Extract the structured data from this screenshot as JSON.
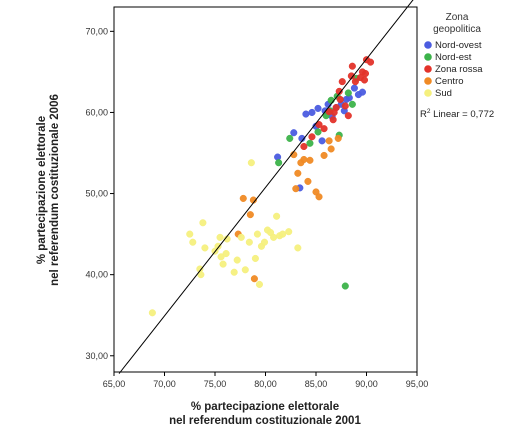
{
  "chart_data": {
    "type": "scatter",
    "xlabel": [
      "% partecipazione elettorale",
      "nel referendum costituzionale 2001"
    ],
    "ylabel": [
      "% partecipazione elettorale",
      "nel referendum costituzionale 2006"
    ],
    "xlim": [
      65,
      95
    ],
    "ylim": [
      28,
      73
    ],
    "x_ticks": [
      65,
      70,
      75,
      80,
      85,
      90,
      95
    ],
    "x_tick_labels": [
      "65,00",
      "70,00",
      "75,00",
      "80,00",
      "85,00",
      "90,00",
      "95,00"
    ],
    "y_ticks": [
      30,
      40,
      50,
      60,
      70
    ],
    "y_tick_labels": [
      "30,00",
      "40,00",
      "50,00",
      "60,00",
      "70,00"
    ],
    "grid": false,
    "legend": {
      "title": [
        "Zona",
        "geopolitica"
      ],
      "placement": "right"
    },
    "annotation": {
      "r2_label": "R² Linear = 0,772",
      "prefix": "R",
      "sup": "2",
      "suffix": " Linear = 0,772"
    },
    "fit_line": {
      "x": [
        65.5,
        95
      ],
      "y": [
        27.8,
        74.5
      ]
    },
    "series": [
      {
        "name": "Nord-ovest",
        "color": "#4B5CE0",
        "points": [
          [
            81.2,
            54.5
          ],
          [
            82.8,
            57.5
          ],
          [
            83.4,
            50.7
          ],
          [
            83.6,
            56.8
          ],
          [
            84.0,
            59.8
          ],
          [
            84.6,
            60.0
          ],
          [
            85.0,
            58.3
          ],
          [
            85.2,
            60.5
          ],
          [
            85.6,
            56.5
          ],
          [
            85.9,
            60.2
          ],
          [
            86.2,
            61.0
          ],
          [
            86.6,
            59.5
          ],
          [
            87.0,
            60.6
          ],
          [
            87.5,
            61.0
          ],
          [
            88.0,
            61.6
          ],
          [
            88.3,
            61.8
          ],
          [
            89.2,
            62.2
          ],
          [
            88.8,
            63.0
          ],
          [
            89.6,
            62.5
          ],
          [
            87.8,
            60.2
          ]
        ]
      },
      {
        "name": "Nord-est",
        "color": "#3CB34A",
        "points": [
          [
            81.3,
            53.8
          ],
          [
            82.4,
            56.8
          ],
          [
            84.4,
            56.2
          ],
          [
            85.2,
            57.6
          ],
          [
            86.0,
            59.6
          ],
          [
            86.4,
            60.2
          ],
          [
            87.1,
            62.0
          ],
          [
            87.3,
            57.2
          ],
          [
            88.2,
            62.4
          ],
          [
            89.0,
            64.2
          ],
          [
            87.9,
            38.6
          ],
          [
            86.5,
            61.5
          ],
          [
            88.6,
            61.0
          ]
        ]
      },
      {
        "name": "Zona rossa",
        "color": "#E3332A",
        "points": [
          [
            83.8,
            55.8
          ],
          [
            84.6,
            57.0
          ],
          [
            85.3,
            58.5
          ],
          [
            85.8,
            58.0
          ],
          [
            86.3,
            60.1
          ],
          [
            86.7,
            59.1
          ],
          [
            87.0,
            60.6
          ],
          [
            87.4,
            61.6
          ],
          [
            87.6,
            63.8
          ],
          [
            87.3,
            62.6
          ],
          [
            87.9,
            60.8
          ],
          [
            88.2,
            59.6
          ],
          [
            88.5,
            64.5
          ],
          [
            88.6,
            65.7
          ],
          [
            88.9,
            63.8
          ],
          [
            89.4,
            64.3
          ],
          [
            89.6,
            65.0
          ],
          [
            89.8,
            64.0
          ],
          [
            90.0,
            66.5
          ],
          [
            90.4,
            66.2
          ],
          [
            89.9,
            64.8
          ],
          [
            86.8,
            60.0
          ]
        ]
      },
      {
        "name": "Centro",
        "color": "#F08A24",
        "points": [
          [
            77.3,
            45.0
          ],
          [
            77.8,
            49.4
          ],
          [
            78.5,
            47.4
          ],
          [
            78.8,
            49.2
          ],
          [
            78.9,
            39.5
          ],
          [
            82.8,
            54.8
          ],
          [
            83.2,
            52.5
          ],
          [
            83.5,
            53.8
          ],
          [
            83.8,
            54.2
          ],
          [
            84.2,
            51.5
          ],
          [
            84.4,
            54.1
          ],
          [
            85.0,
            50.2
          ],
          [
            85.3,
            49.6
          ],
          [
            85.8,
            54.7
          ],
          [
            86.3,
            56.5
          ],
          [
            86.5,
            55.5
          ],
          [
            87.2,
            56.8
          ],
          [
            83.0,
            50.6
          ]
        ]
      },
      {
        "name": "Sud",
        "color": "#F5F07E",
        "points": [
          [
            68.8,
            35.3
          ],
          [
            72.5,
            45.0
          ],
          [
            73.5,
            40.7
          ],
          [
            73.6,
            40.0
          ],
          [
            73.8,
            46.4
          ],
          [
            74.0,
            43.3
          ],
          [
            75.0,
            42.9
          ],
          [
            75.3,
            43.5
          ],
          [
            75.5,
            44.6
          ],
          [
            75.6,
            42.2
          ],
          [
            75.8,
            41.3
          ],
          [
            76.1,
            42.6
          ],
          [
            76.2,
            44.4
          ],
          [
            76.9,
            40.3
          ],
          [
            77.2,
            41.8
          ],
          [
            77.6,
            44.6
          ],
          [
            78.0,
            40.6
          ],
          [
            78.4,
            44.0
          ],
          [
            78.6,
            53.8
          ],
          [
            79.0,
            42.0
          ],
          [
            79.2,
            45.0
          ],
          [
            79.4,
            38.8
          ],
          [
            79.6,
            43.5
          ],
          [
            79.9,
            44.0
          ],
          [
            80.2,
            45.5
          ],
          [
            80.5,
            45.2
          ],
          [
            80.8,
            44.6
          ],
          [
            81.1,
            47.2
          ],
          [
            81.4,
            44.8
          ],
          [
            81.7,
            45.0
          ],
          [
            82.3,
            45.3
          ],
          [
            83.2,
            43.3
          ],
          [
            72.8,
            44.0
          ]
        ]
      }
    ]
  }
}
